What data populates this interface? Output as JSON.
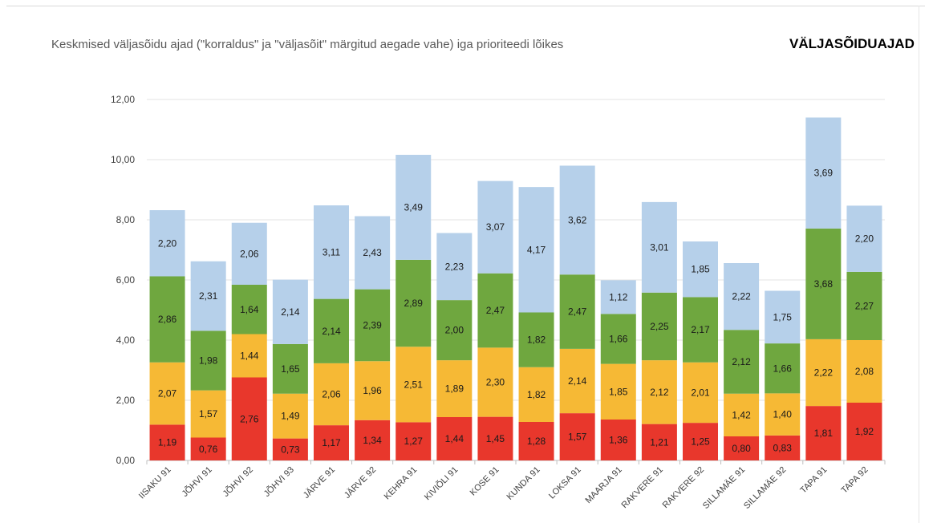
{
  "header": {
    "subtitle": "Keskmised väljasõidu ajad (\"korraldus\" ja \"väljasõit\" märgitud aegade vahe) iga prioriteedi lõikes",
    "title": "VÄLJASÕIDUAJAD"
  },
  "chart_data": {
    "type": "bar",
    "stacked": true,
    "title": "VÄLJASÕIDUAJAD",
    "subtitle": "Keskmised väljasõidu ajad (\"korraldus\" ja \"väljasõit\" märgitud aegade vahe) iga prioriteedi lõikes",
    "xlabel": "",
    "ylabel": "",
    "ylim": [
      0,
      12
    ],
    "yticks": [
      "0,00",
      "2,00",
      "4,00",
      "6,00",
      "8,00",
      "10,00",
      "12,00"
    ],
    "grid": true,
    "legend": "none",
    "categories": [
      "IISAKU 91",
      "JÕHVI 91",
      "JÕHVI 92",
      "JÕHVI 93",
      "JÄRVE 91",
      "JÄRVE 92",
      "KEHRA 91",
      "KIVIÕLI 91",
      "KOSE 91",
      "KUNDA 91",
      "LOKSA 91",
      "MAARJA 91",
      "RAKVERE 91",
      "RAKVERE 92",
      "SILLAMÄE 91",
      "SILLAMÄE 92",
      "TAPA 91",
      "TAPA 92"
    ],
    "series": [
      {
        "color": "#e8372c",
        "values": [
          1.19,
          0.76,
          2.76,
          0.73,
          1.17,
          1.34,
          1.27,
          1.44,
          1.45,
          1.28,
          1.57,
          1.36,
          1.21,
          1.25,
          0.8,
          0.83,
          1.81,
          1.92
        ]
      },
      {
        "color": "#f6b935",
        "values": [
          2.07,
          1.57,
          1.44,
          1.49,
          2.06,
          1.96,
          2.51,
          1.89,
          2.3,
          1.82,
          2.14,
          1.85,
          2.12,
          2.01,
          1.42,
          1.4,
          2.22,
          2.08
        ]
      },
      {
        "color": "#6fa73f",
        "values": [
          2.86,
          1.98,
          1.64,
          1.65,
          2.14,
          2.39,
          2.89,
          2.0,
          2.47,
          1.82,
          2.47,
          1.66,
          2.25,
          2.17,
          2.12,
          1.66,
          3.68,
          2.27
        ]
      },
      {
        "color": "#b6d0ea",
        "values": [
          2.2,
          2.31,
          2.06,
          2.14,
          3.11,
          2.43,
          3.49,
          2.23,
          3.07,
          4.17,
          3.62,
          1.12,
          3.01,
          1.85,
          2.22,
          1.75,
          3.69,
          2.2
        ]
      }
    ]
  }
}
